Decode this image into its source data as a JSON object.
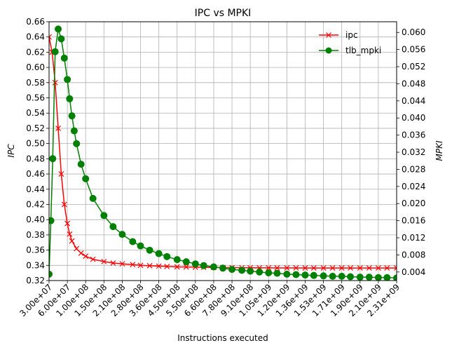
{
  "chart_data": {
    "type": "line",
    "title": "IPC vs MPKI",
    "xlabel": "Instructions executed",
    "ylabel_left": "IPC",
    "ylabel_right": "MPKI",
    "xlim": [
      30000000.0,
      2310000000.0
    ],
    "ylim_left": [
      0.32,
      0.66
    ],
    "ylim_right": [
      0.002,
      0.0625
    ],
    "grid": true,
    "legend_position": "top-right",
    "x_tick_labels": [
      "3.00e+07",
      "6.00e+07",
      "1.00e+08",
      "1.50e+08",
      "2.10e+08",
      "2.80e+08",
      "3.60e+08",
      "4.50e+08",
      "5.50e+08",
      "6.60e+08",
      "7.80e+08",
      "9.10e+08",
      "1.05e+09",
      "1.20e+09",
      "1.36e+09",
      "1.53e+09",
      "1.71e+09",
      "1.90e+09",
      "2.10e+09",
      "2.31e+09"
    ],
    "y_left_ticks": [
      "0.32",
      "0.34",
      "0.36",
      "0.38",
      "0.40",
      "0.42",
      "0.44",
      "0.46",
      "0.48",
      "0.50",
      "0.52",
      "0.54",
      "0.56",
      "0.58",
      "0.60",
      "0.62",
      "0.64",
      "0.66"
    ],
    "y_right_ticks": [
      "0.004",
      "0.008",
      "0.012",
      "0.016",
      "0.020",
      "0.024",
      "0.028",
      "0.032",
      "0.036",
      "0.040",
      "0.044",
      "0.048",
      "0.052",
      "0.056",
      "0.060"
    ],
    "series": [
      {
        "name": "ipc",
        "axis": "left",
        "color": "#ff0000",
        "marker": "x",
        "x": [
          30000000.0,
          35000000.0,
          40000000.0,
          45000000.0,
          50000000.0,
          55000000.0,
          60000000.0,
          65000000.0,
          70000000.0,
          80000000.0,
          90000000.0,
          100000000.0,
          120000000.0,
          150000000.0,
          180000000.0,
          210000000.0,
          250000000.0,
          280000000.0,
          320000000.0,
          360000000.0,
          400000000.0,
          450000000.0,
          500000000.0,
          550000000.0,
          600000000.0,
          660000000.0,
          720000000.0,
          780000000.0,
          850000000.0,
          910000000.0,
          980000000.0,
          1050000000.0,
          1120000000.0,
          1200000000.0,
          1280000000.0,
          1360000000.0,
          1440000000.0,
          1530000000.0,
          1620000000.0,
          1710000000.0,
          1800000000.0,
          1900000000.0,
          2000000000.0,
          2100000000.0,
          2200000000.0,
          2310000000.0
        ],
        "values": [
          0.64,
          0.62,
          0.58,
          0.52,
          0.46,
          0.42,
          0.395,
          0.381,
          0.372,
          0.362,
          0.356,
          0.352,
          0.348,
          0.345,
          0.343,
          0.342,
          0.341,
          0.34,
          0.3395,
          0.339,
          0.3385,
          0.338,
          0.3378,
          0.3376,
          0.3374,
          0.3372,
          0.337,
          0.337,
          0.3368,
          0.3368,
          0.3367,
          0.3367,
          0.3366,
          0.3366,
          0.3366,
          0.3365,
          0.3365,
          0.3365,
          0.3365,
          0.3365,
          0.3365,
          0.3365,
          0.3365,
          0.3365,
          0.3365,
          0.3365
        ]
      },
      {
        "name": "tlb_mpki",
        "axis": "right",
        "color": "#008000",
        "marker": "o",
        "x": [
          30000000.0,
          33000000.0,
          36000000.0,
          40000000.0,
          45000000.0,
          50000000.0,
          55000000.0,
          60000000.0,
          65000000.0,
          70000000.0,
          75000000.0,
          80000000.0,
          90000000.0,
          100000000.0,
          120000000.0,
          150000000.0,
          180000000.0,
          210000000.0,
          250000000.0,
          280000000.0,
          320000000.0,
          360000000.0,
          400000000.0,
          450000000.0,
          500000000.0,
          550000000.0,
          600000000.0,
          660000000.0,
          720000000.0,
          780000000.0,
          850000000.0,
          910000000.0,
          980000000.0,
          1050000000.0,
          1120000000.0,
          1200000000.0,
          1280000000.0,
          1360000000.0,
          1440000000.0,
          1530000000.0,
          1620000000.0,
          1710000000.0,
          1800000000.0,
          1900000000.0,
          2000000000.0,
          2100000000.0,
          2200000000.0,
          2310000000.0
        ],
        "values": [
          0.0035,
          0.016,
          0.0305,
          0.0555,
          0.0608,
          0.0585,
          0.054,
          0.049,
          0.0445,
          0.0405,
          0.037,
          0.034,
          0.0292,
          0.0258,
          0.0212,
          0.0172,
          0.0146,
          0.0128,
          0.0111,
          0.0101,
          0.0091,
          0.0083,
          0.0076,
          0.0069,
          0.0064,
          0.0059,
          0.0055,
          0.0052,
          0.0049,
          0.0046,
          0.0044,
          0.0042,
          0.004,
          0.0038,
          0.0037,
          0.0035,
          0.0034,
          0.0033,
          0.0032,
          0.0031,
          0.003,
          0.003,
          0.0029,
          0.0028,
          0.0028,
          0.0027,
          0.0027,
          0.0026
        ]
      }
    ]
  }
}
